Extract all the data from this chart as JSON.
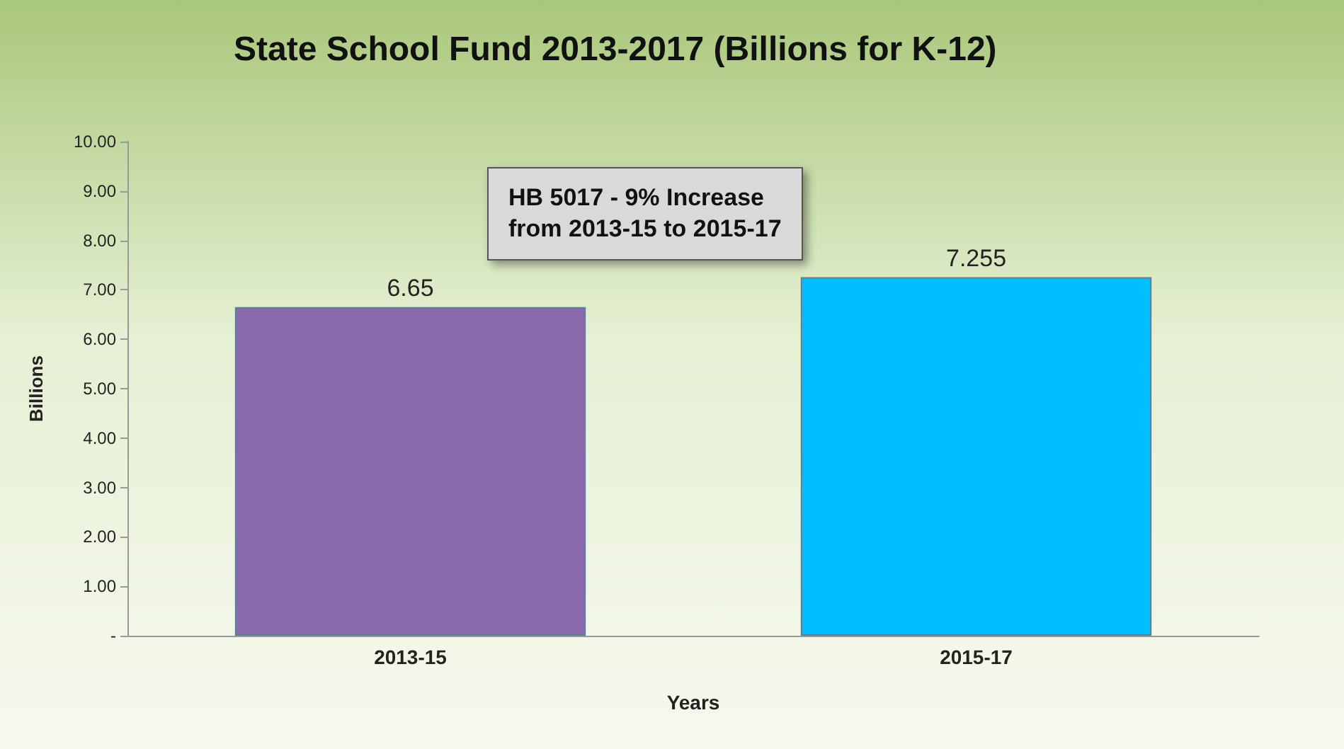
{
  "chart_data": {
    "type": "bar",
    "title": "State School Fund 2013-2017 (Billions for K-12)",
    "xlabel": "Years",
    "ylabel": "Billions",
    "categories": [
      "2013-15",
      "2015-17"
    ],
    "values": [
      6.65,
      7.255
    ],
    "colors": [
      "#8a6aac",
      "#00bfff"
    ],
    "data_labels": true,
    "ylim": [
      0,
      10
    ],
    "yticks": [
      {
        "value": 0,
        "label": "-"
      },
      {
        "value": 1,
        "label": "1.00"
      },
      {
        "value": 2,
        "label": "2.00"
      },
      {
        "value": 3,
        "label": "3.00"
      },
      {
        "value": 4,
        "label": "4.00"
      },
      {
        "value": 5,
        "label": "5.00"
      },
      {
        "value": 6,
        "label": "6.00"
      },
      {
        "value": 7,
        "label": "7.00"
      },
      {
        "value": 8,
        "label": "8.00"
      },
      {
        "value": 9,
        "label": "9.00"
      },
      {
        "value": 10,
        "label": "10.00"
      }
    ],
    "grid": false,
    "annotations": [
      "HB 5017 - 9% Increase\nfrom 2013-15 to 2015-17"
    ]
  }
}
